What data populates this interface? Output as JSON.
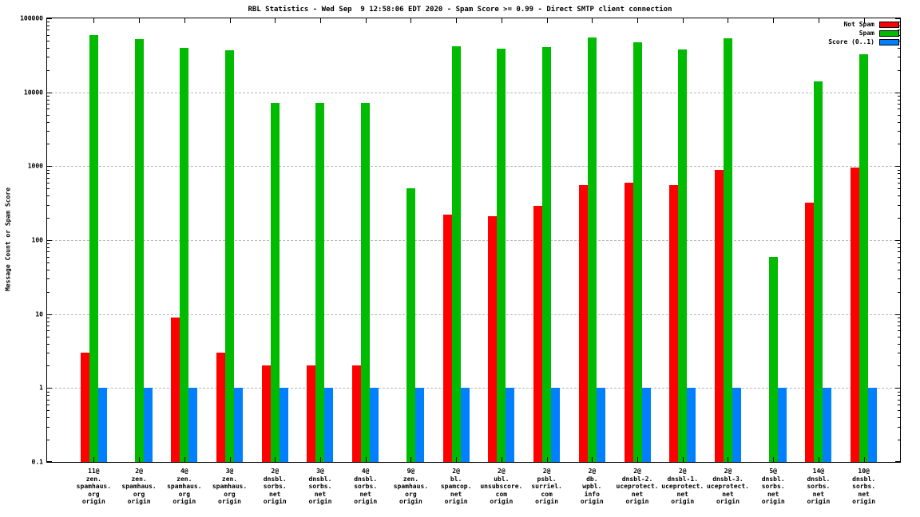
{
  "chart_data": {
    "type": "bar",
    "title": "RBL Statistics - Wed Sep  9 12:58:06 EDT 2020 - Spam Score >= 0.99 - Direct SMTP client connection",
    "ylabel": "Message Count or Spam Score",
    "xlabel": "",
    "y_scale": "log",
    "ylim": [
      0.1,
      100000
    ],
    "y_ticks": [
      100000,
      10000,
      1000,
      100,
      10,
      1,
      0.1
    ],
    "y_tick_labels": [
      "100000",
      "10000",
      "1000",
      "100",
      "10",
      "1",
      "0.1"
    ],
    "grid": true,
    "legend_position": "top-right",
    "categories": [
      [
        "11@",
        "zen.",
        "spamhaus.",
        "org",
        "origin"
      ],
      [
        "2@",
        "zen.",
        "spamhaus.",
        "org",
        "origin"
      ],
      [
        "4@",
        "zen.",
        "spamhaus.",
        "org",
        "origin"
      ],
      [
        "3@",
        "zen.",
        "spamhaus.",
        "org",
        "origin"
      ],
      [
        "2@",
        "dnsbl.",
        "sorbs.",
        "net",
        "origin"
      ],
      [
        "3@",
        "dnsbl.",
        "sorbs.",
        "net",
        "origin"
      ],
      [
        "4@",
        "dnsbl.",
        "sorbs.",
        "net",
        "origin"
      ],
      [
        "9@",
        "zen.",
        "spamhaus.",
        "org",
        "origin"
      ],
      [
        "2@",
        "bl.",
        "spamcop.",
        "net",
        "origin"
      ],
      [
        "2@",
        "ubl.",
        "unsubscore.",
        "com",
        "origin"
      ],
      [
        "2@",
        "psbl.",
        "surriel.",
        "com",
        "origin"
      ],
      [
        "2@",
        "db.",
        "wpbl.",
        "info",
        "origin"
      ],
      [
        "2@",
        "dnsbl-2.",
        "uceprotect.",
        "net",
        "origin"
      ],
      [
        "2@",
        "dnsbl-1.",
        "uceprotect.",
        "net",
        "origin"
      ],
      [
        "2@",
        "dnsbl-3.",
        "uceprotect.",
        "net",
        "origin"
      ],
      [
        "5@",
        "dnsbl.",
        "sorbs.",
        "net",
        "origin"
      ],
      [
        "14@",
        "dnsbl.",
        "sorbs.",
        "net",
        "origin"
      ],
      [
        "10@",
        "dnsbl.",
        "sorbs.",
        "net",
        "origin"
      ]
    ],
    "series": [
      {
        "name": "Not Spam",
        "color": "#ff0000",
        "values": [
          3,
          0,
          9,
          3,
          2,
          2,
          2,
          0,
          220,
          210,
          290,
          550,
          600,
          550,
          900,
          0,
          320,
          950
        ]
      },
      {
        "name": "Spam",
        "color": "#00bb00",
        "values": [
          60000,
          52000,
          40000,
          37000,
          7200,
          7200,
          7200,
          500,
          42000,
          39000,
          41000,
          55000,
          47000,
          38000,
          54000,
          60,
          14000,
          33000
        ]
      },
      {
        "name": "Score (0..1)",
        "color": "#0080ff",
        "values": [
          1,
          1,
          1,
          1,
          1,
          1,
          1,
          1,
          1,
          1,
          1,
          1,
          1,
          1,
          1,
          1,
          1,
          1
        ]
      }
    ]
  }
}
